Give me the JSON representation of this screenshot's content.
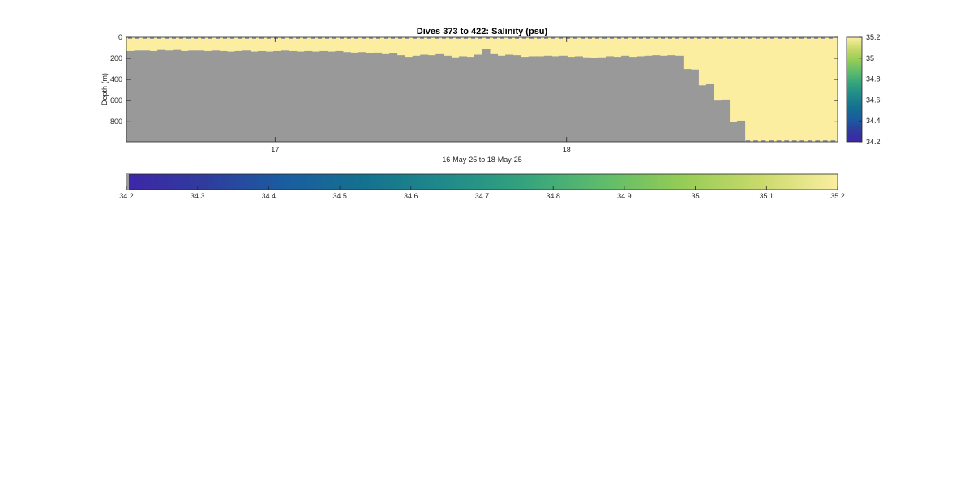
{
  "chart_data": {
    "type": "heatmap",
    "title": "Dives 373 to 422: Salinity (psu)",
    "xlabel": "16-May-25 to 18-May-25",
    "ylabel": "Depth (m)",
    "x_ticks": [
      {
        "value": 17,
        "label": "17"
      },
      {
        "value": 18,
        "label": "18"
      }
    ],
    "xlim": [
      16.49,
      18.93
    ],
    "y_ticks": [
      {
        "value": 0,
        "label": "0"
      },
      {
        "value": 200,
        "label": "200"
      },
      {
        "value": 400,
        "label": "400"
      },
      {
        "value": 600,
        "label": "600"
      },
      {
        "value": 800,
        "label": "800"
      }
    ],
    "ylim": [
      0,
      990
    ],
    "y_reversed": true,
    "dive_bottom_depths": [
      130,
      125,
      125,
      130,
      120,
      125,
      120,
      130,
      125,
      125,
      130,
      125,
      130,
      135,
      130,
      125,
      135,
      130,
      135,
      130,
      125,
      130,
      135,
      130,
      135,
      130,
      135,
      130,
      140,
      145,
      140,
      150,
      145,
      160,
      150,
      170,
      185,
      175,
      165,
      170,
      160,
      175,
      190,
      180,
      185,
      165,
      110,
      160,
      175,
      165,
      170,
      185,
      180,
      180,
      175,
      180,
      175,
      185,
      180,
      190,
      195,
      190,
      180,
      185,
      175,
      185,
      180,
      175,
      170,
      175,
      170,
      175,
      300,
      305,
      455,
      445,
      600,
      590,
      800,
      790,
      990,
      990,
      990,
      990,
      990,
      990,
      990,
      990,
      990,
      990,
      990,
      990
    ],
    "surface_value": 35.2,
    "no_data_color": "#999999",
    "clim": [
      34.2,
      35.2
    ],
    "colorbar_right_ticks": [
      {
        "value": 35.2,
        "label": "35.2"
      },
      {
        "value": 35,
        "label": "35"
      },
      {
        "value": 34.8,
        "label": "34.8"
      },
      {
        "value": 34.6,
        "label": "34.6"
      },
      {
        "value": 34.4,
        "label": "34.4"
      },
      {
        "value": 34.2,
        "label": "34.2"
      }
    ],
    "colorbar_bottom_ticks": [
      {
        "value": 34.2,
        "label": "34.2"
      },
      {
        "value": 34.3,
        "label": "34.3"
      },
      {
        "value": 34.4,
        "label": "34.4"
      },
      {
        "value": 34.5,
        "label": "34.5"
      },
      {
        "value": 34.6,
        "label": "34.6"
      },
      {
        "value": 34.7,
        "label": "34.7"
      },
      {
        "value": 34.8,
        "label": "34.8"
      },
      {
        "value": 34.9,
        "label": "34.9"
      },
      {
        "value": 35,
        "label": "35"
      },
      {
        "value": 35.1,
        "label": "35.1"
      },
      {
        "value": 35.2,
        "label": "35.2"
      }
    ],
    "colormap": [
      "#3e26a8",
      "#2f3c9e",
      "#1a5da0",
      "#14718f",
      "#1f8a8a",
      "#33a27e",
      "#5dbb6c",
      "#93cc55",
      "#c8d96a",
      "#fbeea0"
    ]
  }
}
